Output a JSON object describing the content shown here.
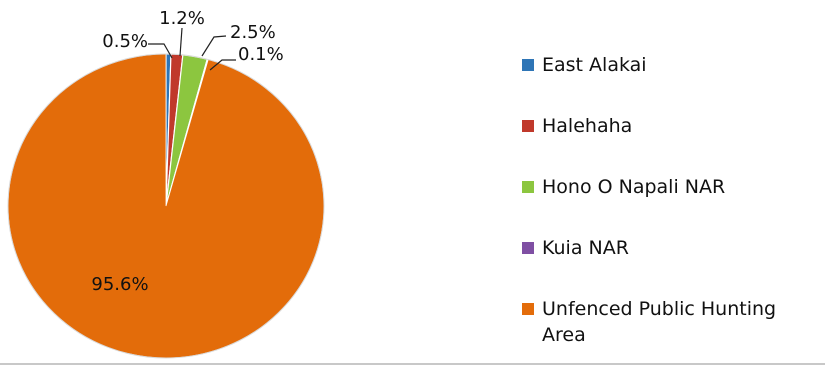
{
  "chart_data": {
    "type": "pie",
    "title": "",
    "slices": [
      {
        "label": "East Alakai",
        "value": 0.5,
        "value_label": "0.5%",
        "color": "#2e75b6"
      },
      {
        "label": "Halehaha",
        "value": 1.2,
        "value_label": "1.2%",
        "color": "#c0392b"
      },
      {
        "label": "Hono O Napali NAR",
        "value": 2.5,
        "value_label": "2.5%",
        "color": "#8cc63f"
      },
      {
        "label": "Kuia NAR",
        "value": 0.1,
        "value_label": "0.1%",
        "color": "#7f4fa3"
      },
      {
        "label": "Unfenced Public Hunting Area",
        "value": 95.6,
        "value_label": "95.6%",
        "color": "#e36c0a"
      }
    ],
    "legend_position": "right",
    "start_angle": "top",
    "direction": "clockwise"
  }
}
